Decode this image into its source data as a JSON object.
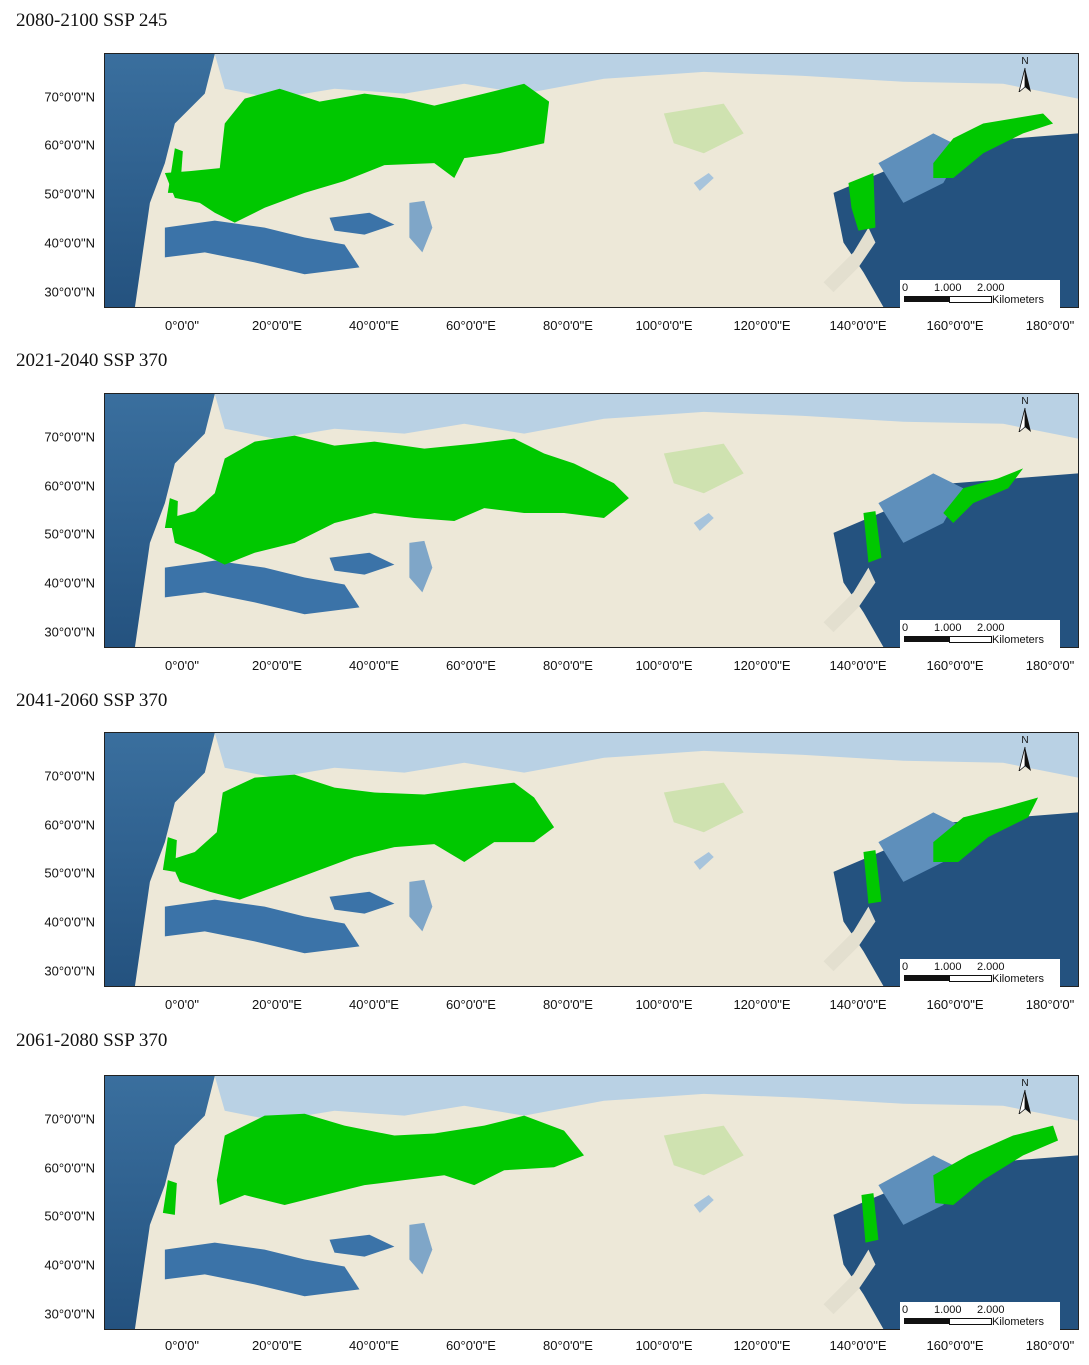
{
  "lat_labels": [
    "70°0'0\"N",
    "60°0'0\"N",
    "50°0'0\"N",
    "40°0'0\"N",
    "30°0'0\"N"
  ],
  "lon_labels": [
    "0°0'0\"",
    "20°0'0\"E",
    "40°0'0\"E",
    "60°0'0\"E",
    "80°0'0\"E",
    "100°0'0\"E",
    "120°0'0\"E",
    "140°0'0\"E",
    "160°0'0\"E",
    "180°0'0\""
  ],
  "north": "N",
  "scale": {
    "ticks": [
      "0",
      "1.000",
      "2.000"
    ],
    "unit": "Kilometers"
  },
  "colors": {
    "suitable_habitat": "#00c800",
    "land": "#ede8d8",
    "sea": "#2c5f8e",
    "lakes": "#a7c4dc",
    "vegetation": "#cfe2b0"
  },
  "panels": [
    {
      "title": "2080-2100 SSP 245"
    },
    {
      "title": "2021-2040 SSP 370"
    },
    {
      "title": "2041-2060 SSP 370"
    },
    {
      "title": "2061-2080 SSP 370"
    }
  ]
}
